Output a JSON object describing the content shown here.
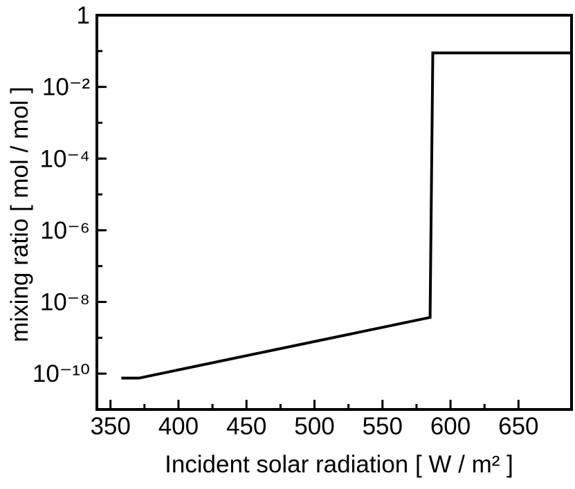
{
  "chart_data": {
    "type": "line",
    "xlabel": "Incident solar radiation [ W / m² ]",
    "ylabel": "mixing ratio  [ mol / mol ]",
    "log_y": true,
    "xlim": [
      340,
      689
    ],
    "xticks": [
      350,
      400,
      450,
      500,
      550,
      600,
      650
    ],
    "ylim": [
      1e-11,
      1
    ],
    "yticks": [
      1,
      {
        "value": 0.01,
        "label": "10⁻²"
      },
      {
        "value": 0.0001,
        "label": "10⁻⁴"
      },
      {
        "value": 1e-06,
        "label": "10⁻⁶"
      },
      {
        "value": 1e-08,
        "label": "10⁻⁸"
      },
      {
        "value": 1e-10,
        "label": "10⁻¹⁰"
      }
    ],
    "series": [
      {
        "color": "#000000",
        "x": [
          358,
          371,
          585,
          587,
          689
        ],
        "values": [
          7.5e-11,
          7.5e-11,
          3.7e-09,
          0.089,
          0.089
        ]
      }
    ]
  }
}
